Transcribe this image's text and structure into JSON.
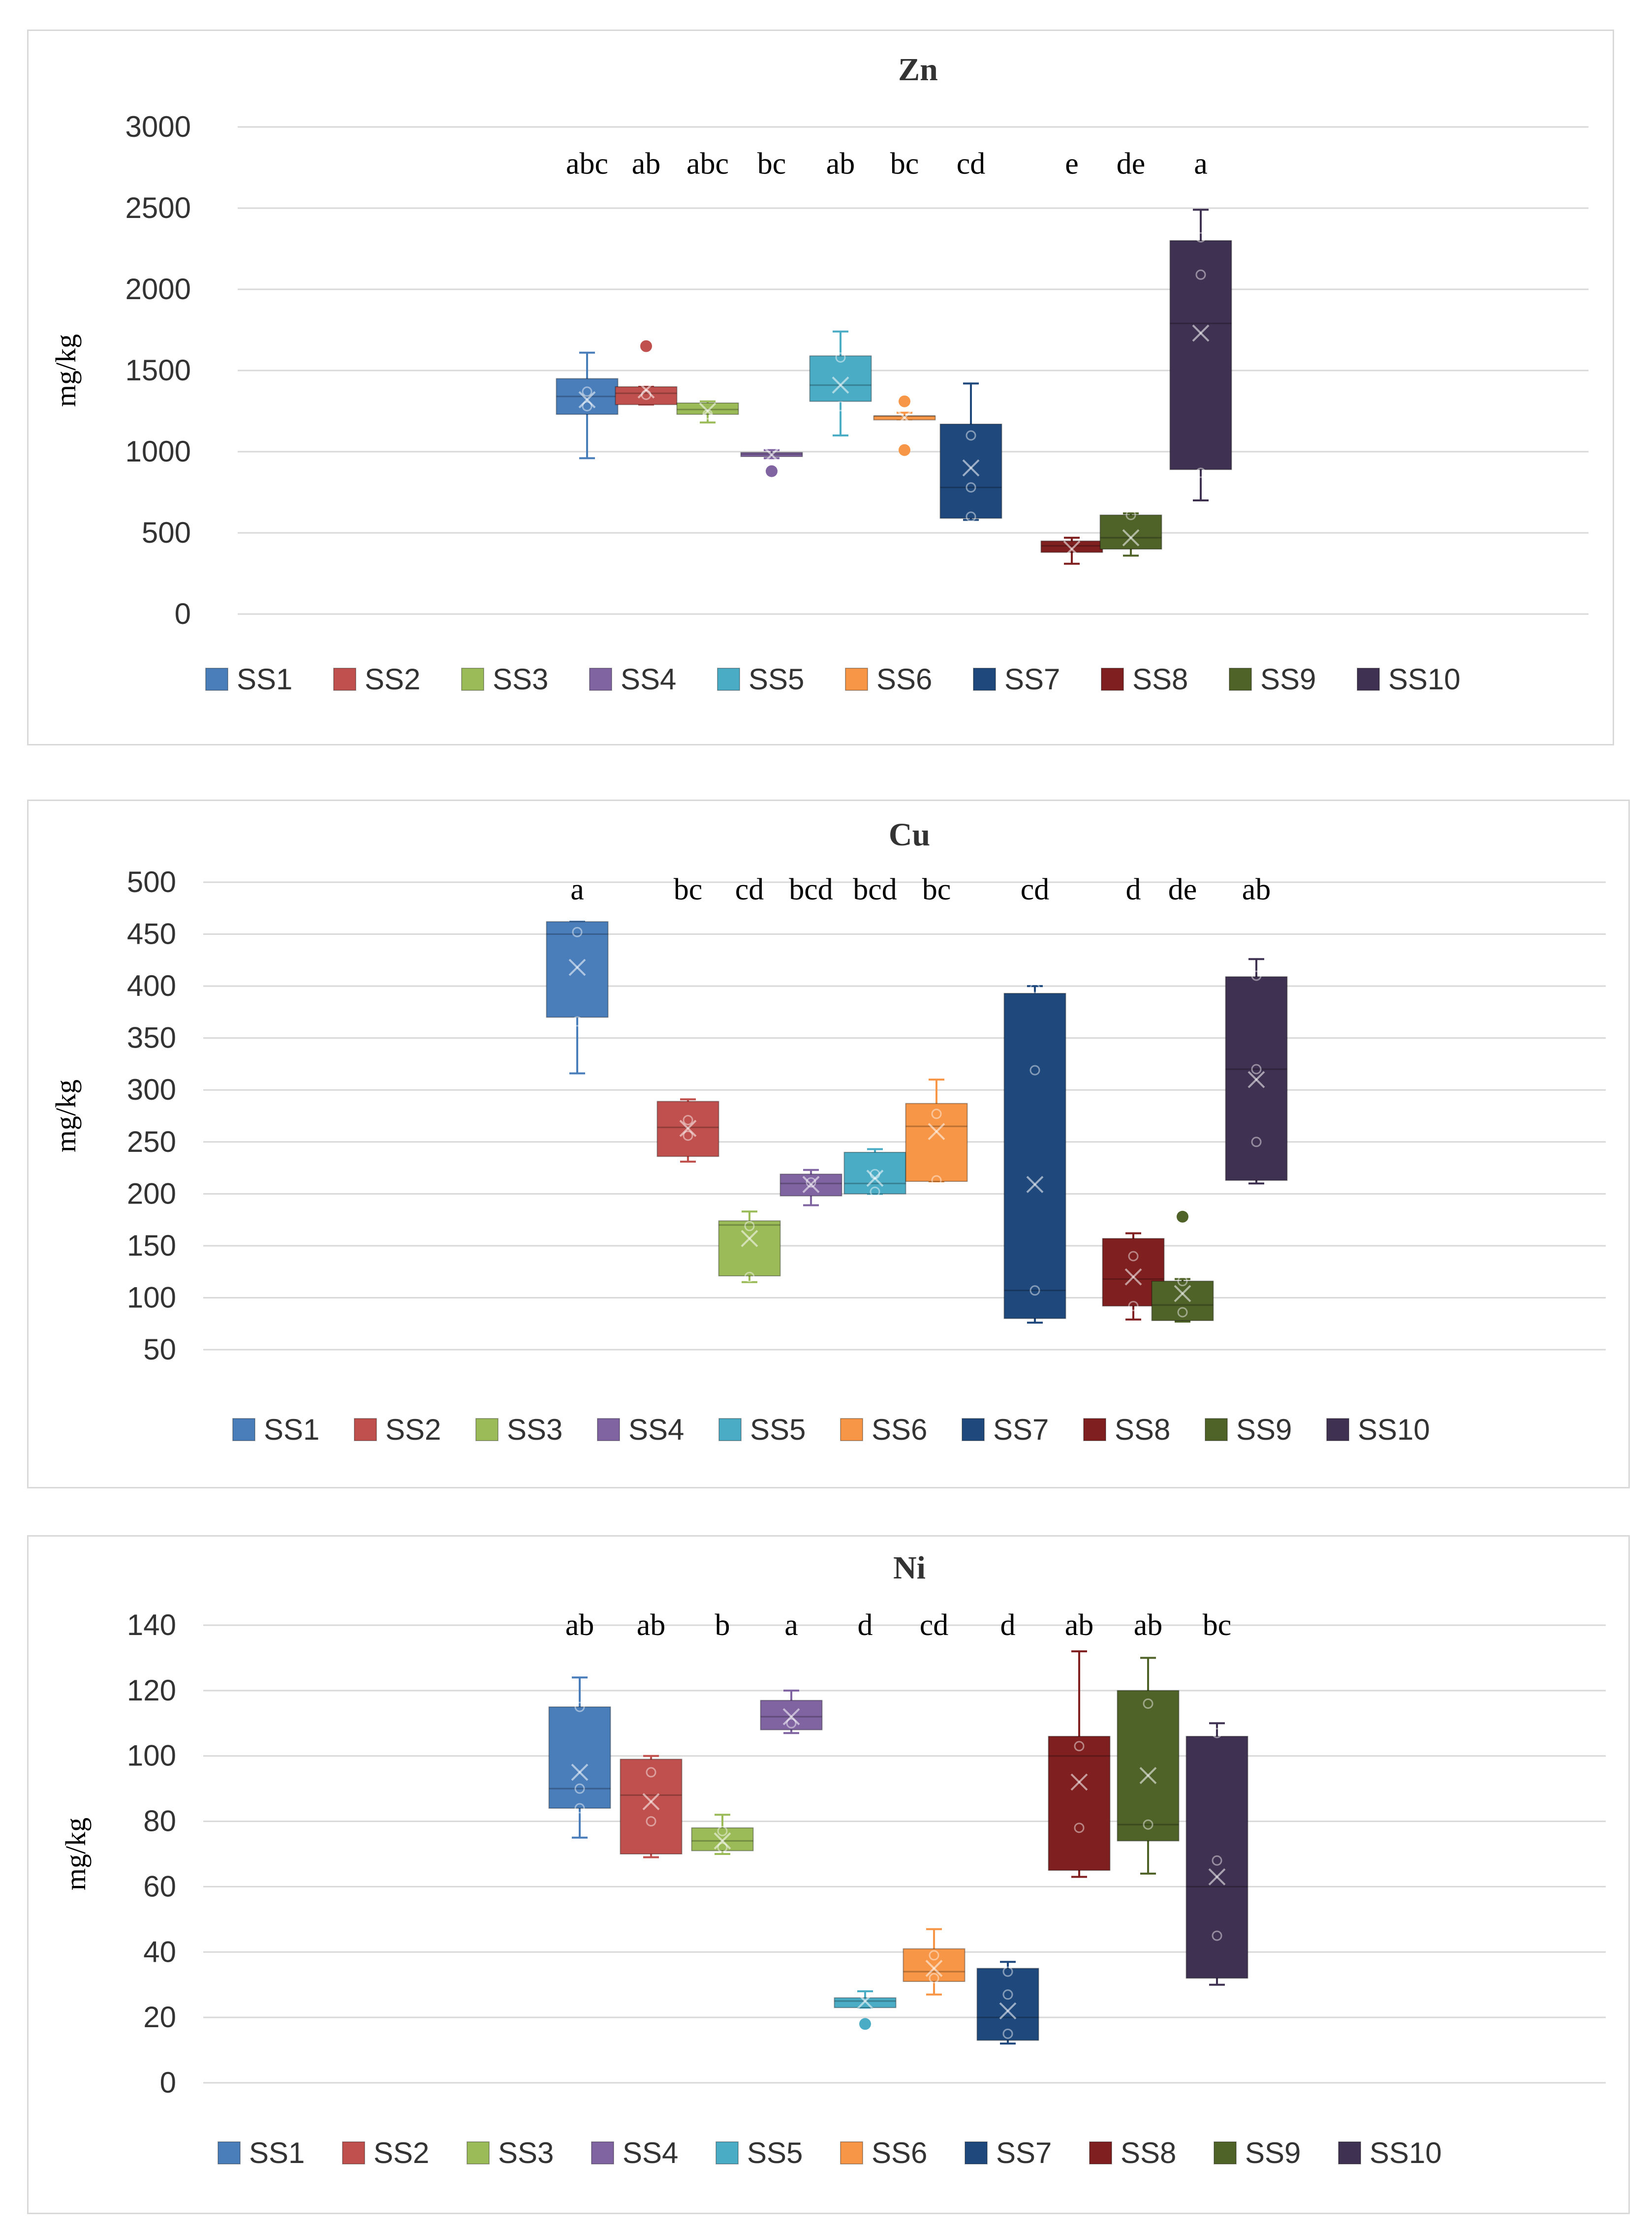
{
  "chart_data": [
    {
      "type": "box",
      "title": "Zn",
      "ylabel": "mg/kg",
      "ylim": [
        0,
        3000
      ],
      "yticks": [
        0,
        500,
        1000,
        1500,
        2000,
        2500,
        3000
      ],
      "grid": true,
      "legend_position": "bottom",
      "series": [
        {
          "name": "SS1",
          "color": "#4a7ebb",
          "sig": "abc",
          "min": 960,
          "q1": 1230,
          "median": 1340,
          "q3": 1450,
          "max": 1610,
          "mean": 1320,
          "outliers": [],
          "points": [
            1280,
            1370
          ]
        },
        {
          "name": "SS2",
          "color": "#c0504d",
          "sig": "ab",
          "min": 1290,
          "q1": 1290,
          "median": 1360,
          "q3": 1400,
          "max": 1400,
          "mean": 1380,
          "outliers": [
            1650
          ],
          "points": [
            1350
          ]
        },
        {
          "name": "SS3",
          "color": "#9bbb59",
          "sig": "abc",
          "min": 1180,
          "q1": 1230,
          "median": 1260,
          "q3": 1300,
          "max": 1310,
          "mean": 1250,
          "outliers": [],
          "points": [
            1230
          ]
        },
        {
          "name": "SS4",
          "color": "#8064a2",
          "sig": "bc",
          "min": 960,
          "q1": 970,
          "median": 985,
          "q3": 995,
          "max": 1010,
          "mean": 980,
          "outliers": [
            880
          ],
          "points": []
        },
        {
          "name": "SS5",
          "color": "#4bacc6",
          "sig": "ab",
          "min": 1100,
          "q1": 1310,
          "median": 1410,
          "q3": 1590,
          "max": 1740,
          "mean": 1410,
          "outliers": [],
          "points": [
            1280,
            1580
          ]
        },
        {
          "name": "SS6",
          "color": "#f79646",
          "sig": "bc",
          "min": 1200,
          "q1": 1200,
          "median": 1220,
          "q3": 1220,
          "max": 1240,
          "mean": 1210,
          "outliers": [
            1010,
            1310
          ],
          "points": []
        },
        {
          "name": "SS7",
          "color": "#1f497d",
          "sig": "cd",
          "min": 580,
          "q1": 590,
          "median": 780,
          "q3": 1170,
          "max": 1420,
          "mean": 900,
          "outliers": [],
          "points": [
            1100,
            780,
            600
          ]
        },
        {
          "name": "SS8",
          "color": "#7f1f1f",
          "sig": "e",
          "min": 310,
          "q1": 380,
          "median": 420,
          "q3": 450,
          "max": 470,
          "mean": 400,
          "outliers": [],
          "points": []
        },
        {
          "name": "SS9",
          "color": "#4f6228",
          "sig": "de",
          "min": 360,
          "q1": 400,
          "median": 470,
          "q3": 610,
          "max": 620,
          "mean": 470,
          "outliers": [],
          "points": [
            610
          ]
        },
        {
          "name": "SS10",
          "color": "#3f3151",
          "sig": "a",
          "min": 700,
          "q1": 890,
          "median": 1790,
          "q3": 2300,
          "max": 2490,
          "mean": 1730,
          "outliers": [],
          "points": [
            2090,
            2320,
            870
          ]
        }
      ]
    },
    {
      "type": "box",
      "title": "Cu",
      "ylabel": "mg/kg",
      "ylim": [
        50,
        500
      ],
      "yticks": [
        50,
        100,
        150,
        200,
        250,
        300,
        350,
        400,
        450,
        500
      ],
      "grid": true,
      "legend_position": "bottom",
      "series": [
        {
          "name": "SS1",
          "color": "#4a7ebb",
          "sig": "a",
          "min": 316,
          "q1": 370,
          "median": 450,
          "q3": 462,
          "max": 462,
          "mean": 418,
          "outliers": [],
          "points": [
            366,
            452
          ]
        },
        {
          "name": "SS2",
          "color": "#c0504d",
          "sig": "bc",
          "min": 231,
          "q1": 236,
          "median": 264,
          "q3": 289,
          "max": 291,
          "mean": 263,
          "outliers": [],
          "points": [
            256,
            271
          ]
        },
        {
          "name": "SS3",
          "color": "#9bbb59",
          "sig": "cd",
          "min": 115,
          "q1": 121,
          "median": 170,
          "q3": 174,
          "max": 183,
          "mean": 157,
          "outliers": [],
          "points": [
            120,
            169
          ]
        },
        {
          "name": "SS4",
          "color": "#8064a2",
          "sig": "bcd",
          "min": 189,
          "q1": 198,
          "median": 210,
          "q3": 219,
          "max": 223,
          "mean": 209,
          "outliers": [],
          "points": [
            211
          ]
        },
        {
          "name": "SS5",
          "color": "#4bacc6",
          "sig": "bcd",
          "min": 200,
          "q1": 200,
          "median": 210,
          "q3": 240,
          "max": 243,
          "mean": 215,
          "outliers": [],
          "points": [
            202,
            219
          ]
        },
        {
          "name": "SS6",
          "color": "#f79646",
          "sig": "bc",
          "min": 212,
          "q1": 212,
          "median": 265,
          "q3": 287,
          "max": 310,
          "mean": 260,
          "outliers": [],
          "points": [
            213,
            277
          ]
        },
        {
          "name": "SS7",
          "color": "#1f497d",
          "sig": "cd",
          "min": 76,
          "q1": 80,
          "median": 107,
          "q3": 393,
          "max": 400,
          "mean": 209,
          "outliers": [],
          "points": [
            107,
            319,
            398
          ]
        },
        {
          "name": "SS8",
          "color": "#7f1f1f",
          "sig": "d",
          "min": 79,
          "q1": 92,
          "median": 118,
          "q3": 157,
          "max": 162,
          "mean": 120,
          "outliers": [],
          "points": [
            92,
            140
          ]
        },
        {
          "name": "SS9",
          "color": "#4f6228",
          "sig": "de",
          "min": 77,
          "q1": 78,
          "median": 93,
          "q3": 116,
          "max": 118,
          "mean": 104,
          "outliers": [
            178
          ],
          "points": [
            86,
            116
          ]
        },
        {
          "name": "SS10",
          "color": "#3f3151",
          "sig": "ab",
          "min": 210,
          "q1": 213,
          "median": 320,
          "q3": 409,
          "max": 426,
          "mean": 310,
          "outliers": [],
          "points": [
            250,
            320,
            410
          ]
        }
      ]
    },
    {
      "type": "box",
      "title": "Ni",
      "ylabel": "mg/kg",
      "ylim": [
        0,
        140
      ],
      "yticks": [
        0,
        20,
        40,
        60,
        80,
        100,
        120,
        140
      ],
      "grid": true,
      "legend_position": "bottom",
      "series": [
        {
          "name": "SS1",
          "color": "#4a7ebb",
          "sig": "ab",
          "min": 75,
          "q1": 84,
          "median": 90,
          "q3": 115,
          "max": 124,
          "mean": 95,
          "outliers": [],
          "points": [
            84,
            90,
            115
          ]
        },
        {
          "name": "SS2",
          "color": "#c0504d",
          "sig": "ab",
          "min": 69,
          "q1": 70,
          "median": 88,
          "q3": 99,
          "max": 100,
          "mean": 86,
          "outliers": [],
          "points": [
            80,
            95
          ]
        },
        {
          "name": "SS3",
          "color": "#9bbb59",
          "sig": "b",
          "min": 70,
          "q1": 71,
          "median": 74,
          "q3": 78,
          "max": 82,
          "mean": 74,
          "outliers": [],
          "points": [
            72,
            77
          ]
        },
        {
          "name": "SS4",
          "color": "#8064a2",
          "sig": "a",
          "min": 107,
          "q1": 108,
          "median": 112,
          "q3": 117,
          "max": 120,
          "mean": 112,
          "outliers": [],
          "points": [
            110
          ]
        },
        {
          "name": "SS5",
          "color": "#4bacc6",
          "sig": "d",
          "min": 23,
          "q1": 23,
          "median": 25,
          "q3": 26,
          "max": 28,
          "mean": 25,
          "outliers": [
            18
          ],
          "points": []
        },
        {
          "name": "SS6",
          "color": "#f79646",
          "sig": "cd",
          "min": 27,
          "q1": 31,
          "median": 34,
          "q3": 41,
          "max": 47,
          "mean": 35,
          "outliers": [],
          "points": [
            32,
            39
          ]
        },
        {
          "name": "SS7",
          "color": "#1f497d",
          "sig": "d",
          "min": 12,
          "q1": 13,
          "median": 20,
          "q3": 35,
          "max": 37,
          "mean": 22,
          "outliers": [],
          "points": [
            15,
            27,
            34
          ]
        },
        {
          "name": "SS8",
          "color": "#7f1f1f",
          "sig": "ab",
          "min": 63,
          "q1": 65,
          "median": 100,
          "q3": 106,
          "max": 132,
          "mean": 92,
          "outliers": [],
          "points": [
            78,
            103
          ]
        },
        {
          "name": "SS9",
          "color": "#4f6228",
          "sig": "ab",
          "min": 64,
          "q1": 74,
          "median": 79,
          "q3": 120,
          "max": 130,
          "mean": 94,
          "outliers": [],
          "points": [
            79,
            116
          ]
        },
        {
          "name": "SS10",
          "color": "#3f3151",
          "sig": "bc",
          "min": 30,
          "q1": 32,
          "median": 60,
          "q3": 106,
          "max": 110,
          "mean": 63,
          "outliers": [],
          "points": [
            45,
            68,
            107
          ]
        }
      ]
    }
  ]
}
